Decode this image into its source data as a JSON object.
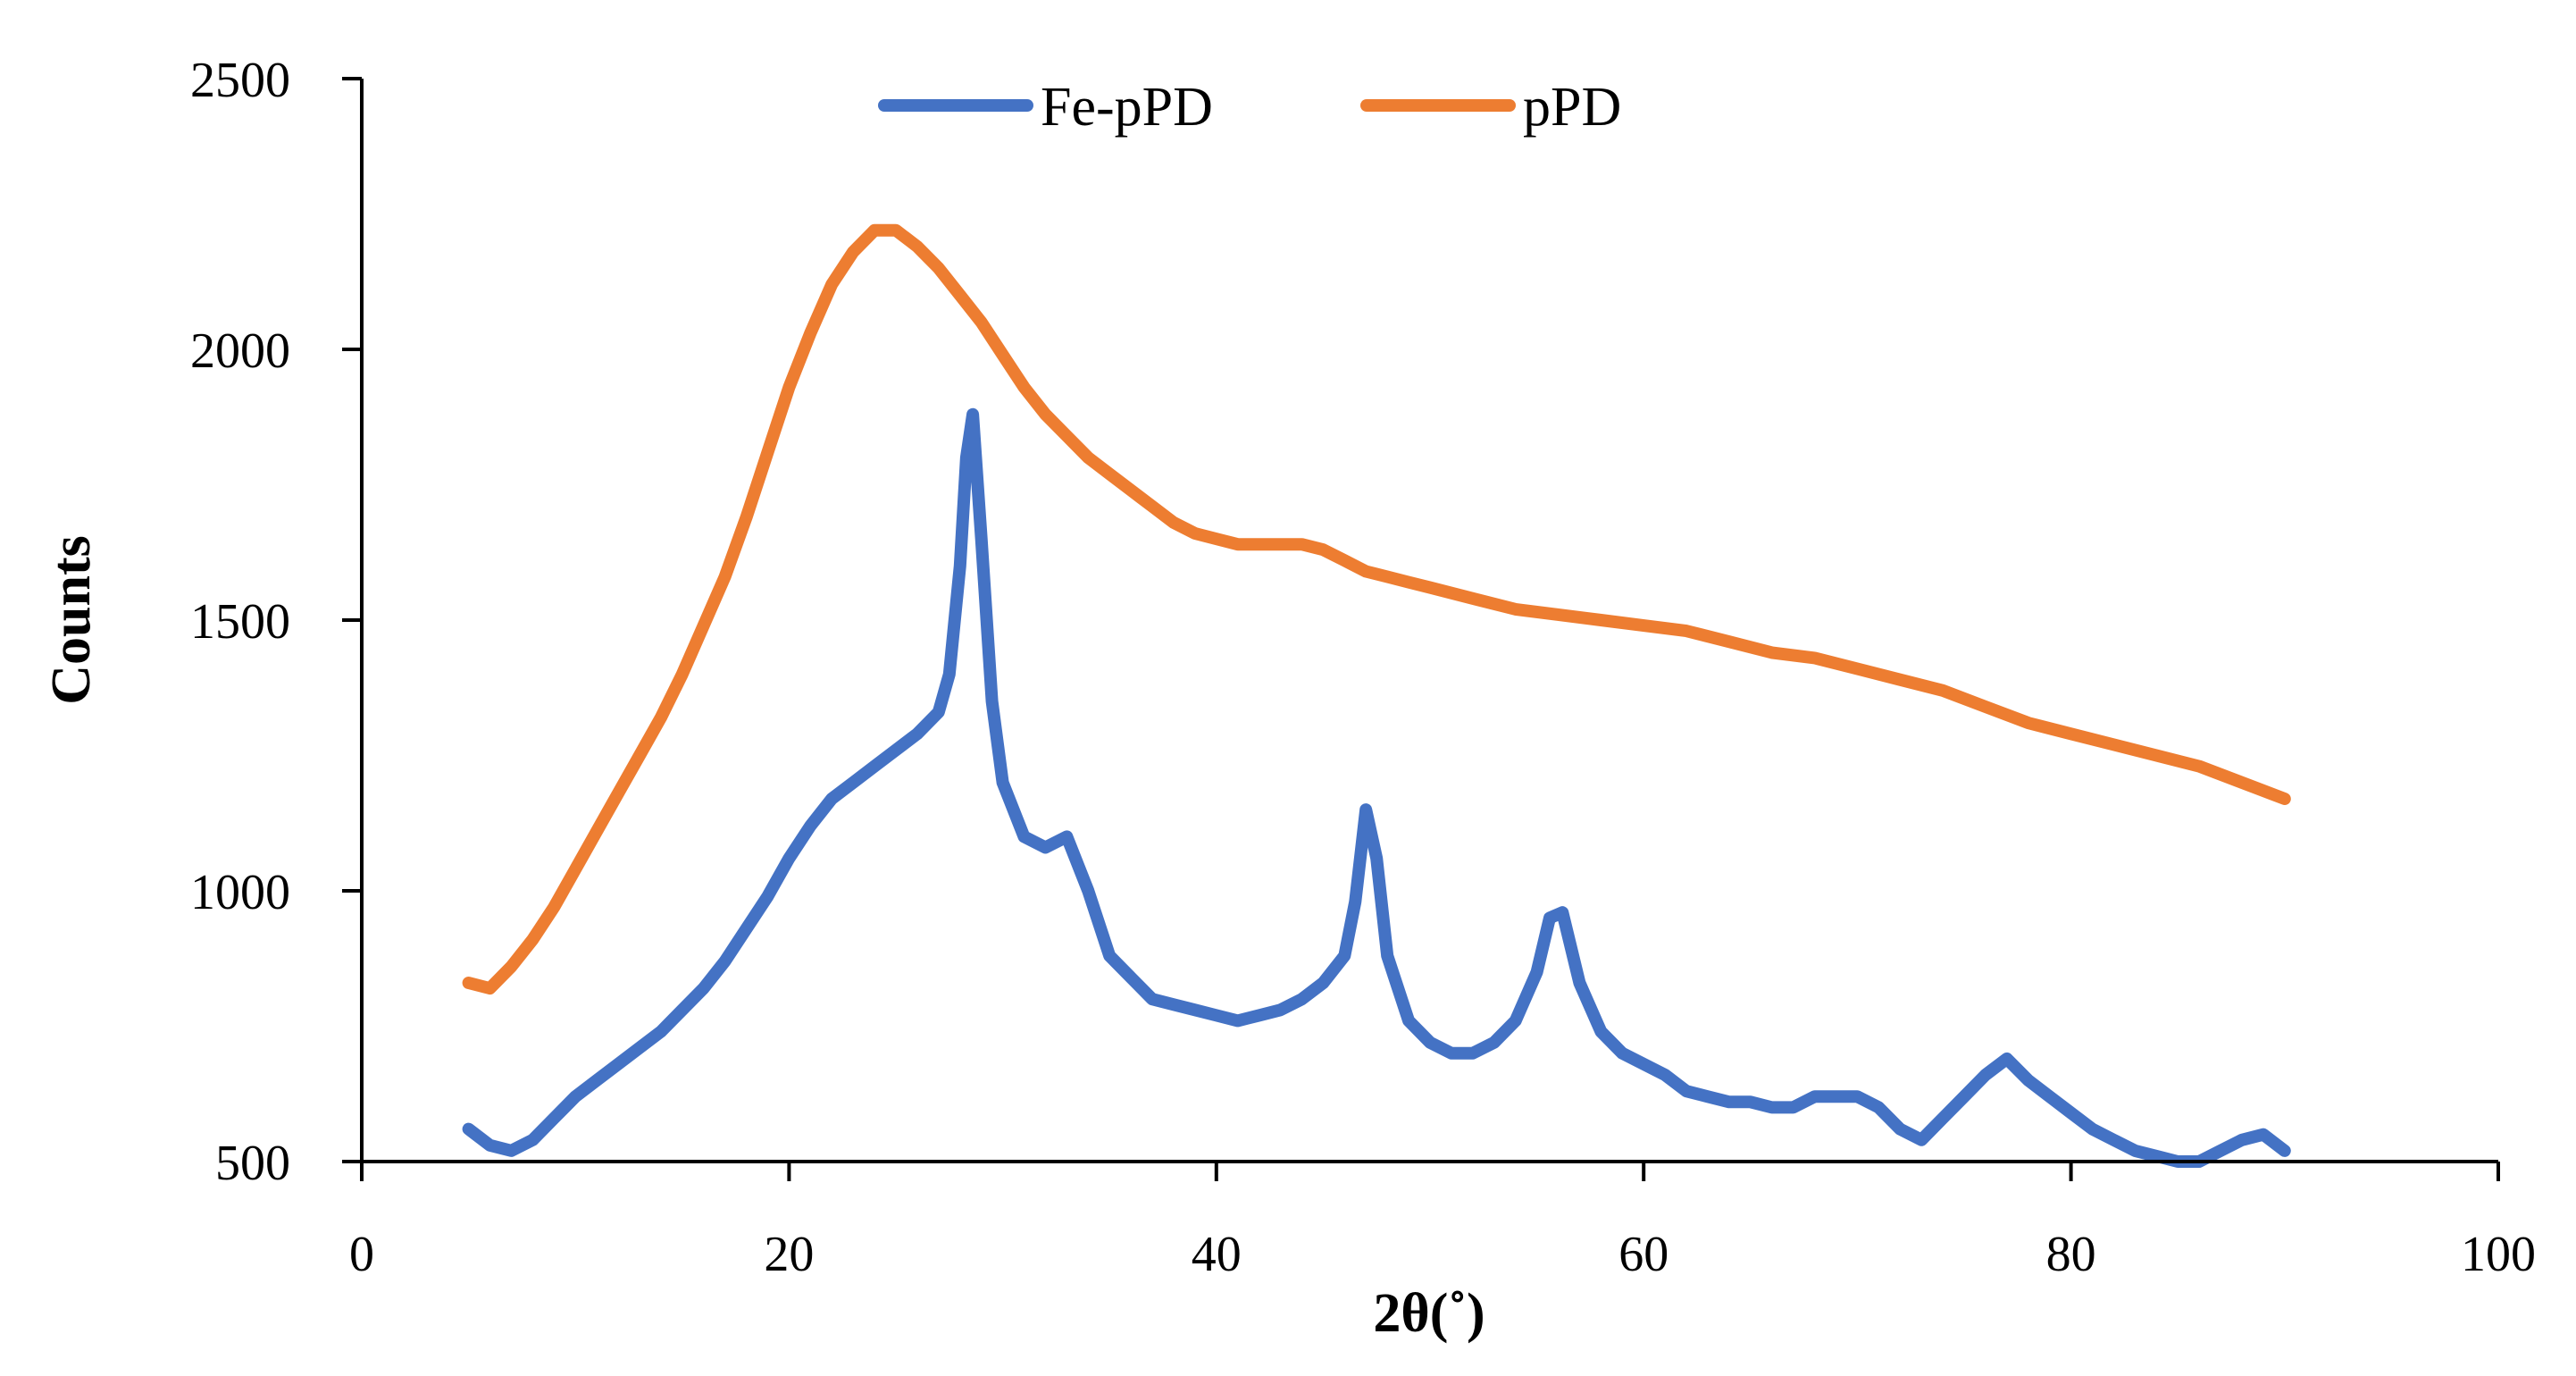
{
  "chart_data": {
    "type": "line",
    "title": "",
    "xlabel": "2θ(˚)",
    "ylabel": "Counts",
    "xlim": [
      0,
      100
    ],
    "ylim": [
      500,
      2500
    ],
    "xticks": [
      0,
      20,
      40,
      60,
      80,
      100
    ],
    "yticks": [
      500,
      1000,
      1500,
      2000,
      2500
    ],
    "grid": false,
    "legend_position": "top-center",
    "series": [
      {
        "name": "Fe-pPD",
        "color": "#4472C4",
        "x": [
          5,
          6,
          7,
          8,
          9,
          10,
          11,
          12,
          13,
          14,
          15,
          16,
          17,
          18,
          19,
          20,
          21,
          22,
          23,
          24,
          25,
          26,
          27,
          27.5,
          28,
          28.3,
          28.6,
          29,
          29.5,
          30,
          31,
          32,
          33,
          34,
          35,
          36,
          37,
          38,
          39,
          40,
          41,
          42,
          43,
          44,
          45,
          46,
          46.5,
          47,
          47.5,
          48,
          49,
          50,
          51,
          52,
          53,
          54,
          55,
          55.6,
          56.2,
          57,
          58,
          59,
          60,
          61,
          62,
          63,
          64,
          65,
          66,
          67,
          68,
          69,
          70,
          71,
          72,
          73,
          74,
          75,
          76,
          77,
          78,
          79,
          80,
          81,
          82,
          83,
          84,
          85,
          86,
          87,
          88,
          89,
          90
        ],
        "y": [
          560,
          530,
          520,
          540,
          580,
          620,
          650,
          680,
          710,
          740,
          780,
          820,
          870,
          930,
          990,
          1060,
          1120,
          1170,
          1200,
          1230,
          1260,
          1290,
          1330,
          1400,
          1600,
          1800,
          1880,
          1650,
          1350,
          1200,
          1100,
          1080,
          1100,
          1000,
          880,
          840,
          800,
          790,
          780,
          770,
          760,
          770,
          780,
          800,
          830,
          880,
          980,
          1150,
          1060,
          880,
          760,
          720,
          700,
          700,
          720,
          760,
          850,
          950,
          960,
          830,
          740,
          700,
          680,
          660,
          630,
          620,
          610,
          610,
          600,
          600,
          620,
          620,
          620,
          600,
          560,
          540,
          580,
          620,
          660,
          690,
          650,
          620,
          590,
          560,
          540,
          520,
          510,
          500,
          500,
          520,
          540,
          550,
          520
        ]
      },
      {
        "name": "pPD",
        "color": "#ED7D31",
        "x": [
          5,
          6,
          7,
          8,
          9,
          10,
          11,
          12,
          13,
          14,
          15,
          16,
          17,
          18,
          19,
          20,
          21,
          22,
          23,
          24,
          25,
          26,
          27,
          28,
          29,
          30,
          31,
          32,
          33,
          34,
          35,
          36,
          37,
          38,
          39,
          40,
          41,
          42,
          43,
          44,
          45,
          46,
          47,
          48,
          49,
          50,
          52,
          54,
          56,
          58,
          60,
          62,
          64,
          66,
          68,
          70,
          72,
          74,
          76,
          78,
          80,
          82,
          84,
          86,
          88,
          90
        ],
        "y": [
          830,
          820,
          860,
          910,
          970,
          1040,
          1110,
          1180,
          1250,
          1320,
          1400,
          1490,
          1580,
          1690,
          1810,
          1930,
          2030,
          2120,
          2180,
          2220,
          2220,
          2190,
          2150,
          2100,
          2050,
          1990,
          1930,
          1880,
          1840,
          1800,
          1770,
          1740,
          1710,
          1680,
          1660,
          1650,
          1640,
          1640,
          1640,
          1640,
          1630,
          1610,
          1590,
          1580,
          1570,
          1560,
          1540,
          1520,
          1510,
          1500,
          1490,
          1480,
          1460,
          1440,
          1430,
          1410,
          1390,
          1370,
          1340,
          1310,
          1290,
          1270,
          1250,
          1230,
          1200,
          1170
        ]
      }
    ]
  }
}
